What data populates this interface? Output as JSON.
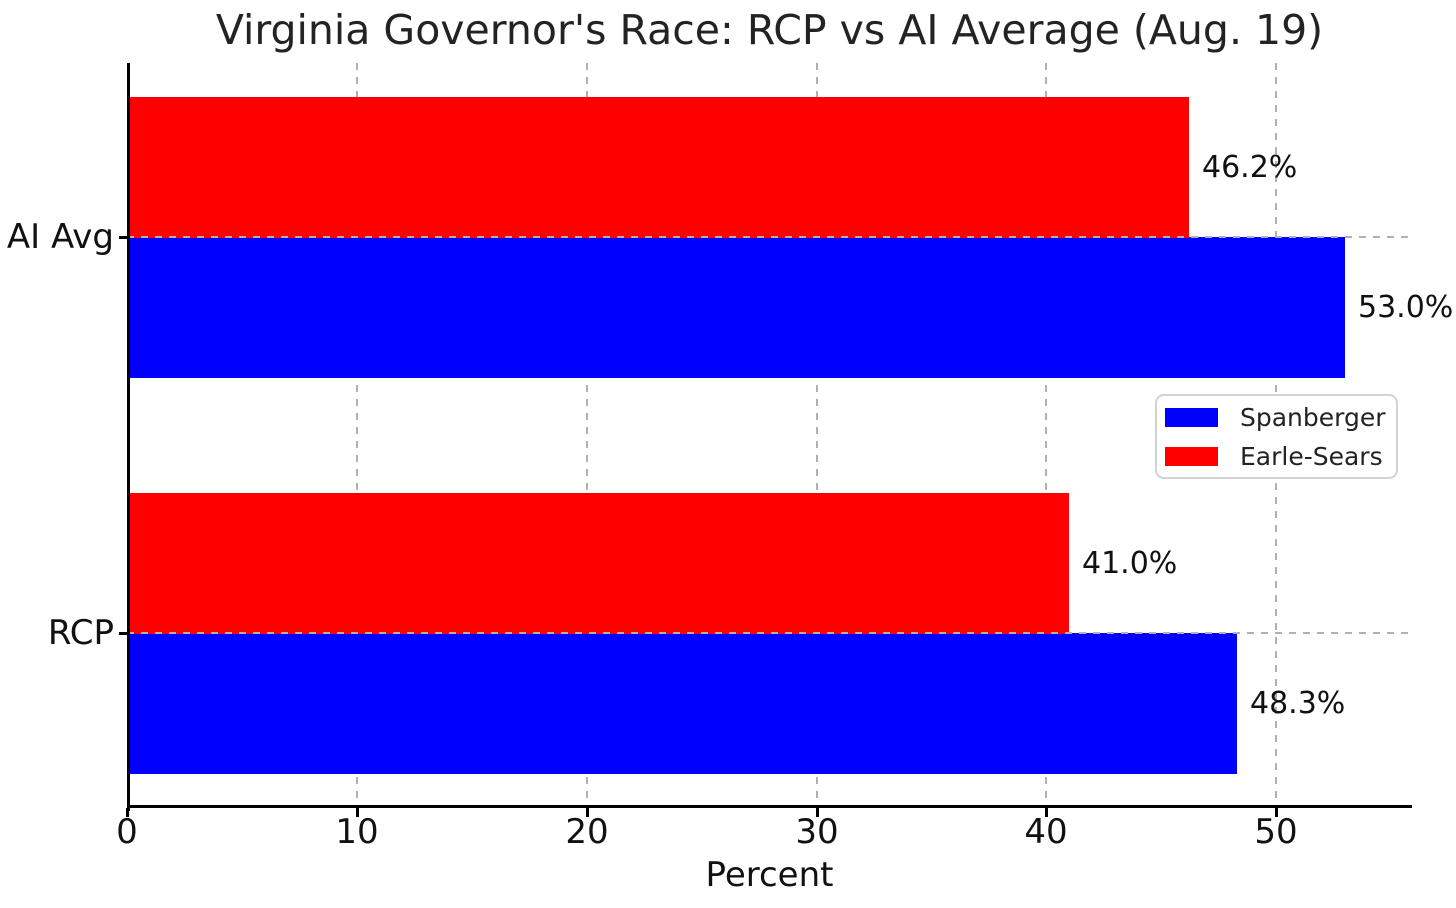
{
  "chart_data": {
    "type": "bar",
    "orientation": "horizontal",
    "title": "Virginia Governor's Race: RCP vs AI Average (Aug. 19)",
    "xlabel": "Percent",
    "ylabel": "",
    "categories": [
      "AI Avg",
      "RCP"
    ],
    "series": [
      {
        "name": "Spanberger",
        "color": "#0000ff",
        "values": [
          53.0,
          48.3
        ],
        "value_labels": [
          "53.0%",
          "48.3%"
        ]
      },
      {
        "name": "Earle-Sears",
        "color": "#ff0000",
        "values": [
          46.2,
          41.0
        ],
        "value_labels": [
          "46.2%",
          "41.0%"
        ]
      }
    ],
    "x_ticks": [
      0,
      10,
      20,
      30,
      40,
      50
    ],
    "x_tick_labels": [
      "0",
      "10",
      "20",
      "30",
      "40",
      "50"
    ],
    "xlim": [
      0,
      55.9
    ],
    "grid": "dashed",
    "legend_position": "center-right"
  },
  "colors": {
    "spanberger": "#0000ff",
    "earle_sears": "#ff0000",
    "grid": "#b1b1b1",
    "axis": "#000000",
    "text": "#111111",
    "legend_border": "#d2d2d2"
  }
}
